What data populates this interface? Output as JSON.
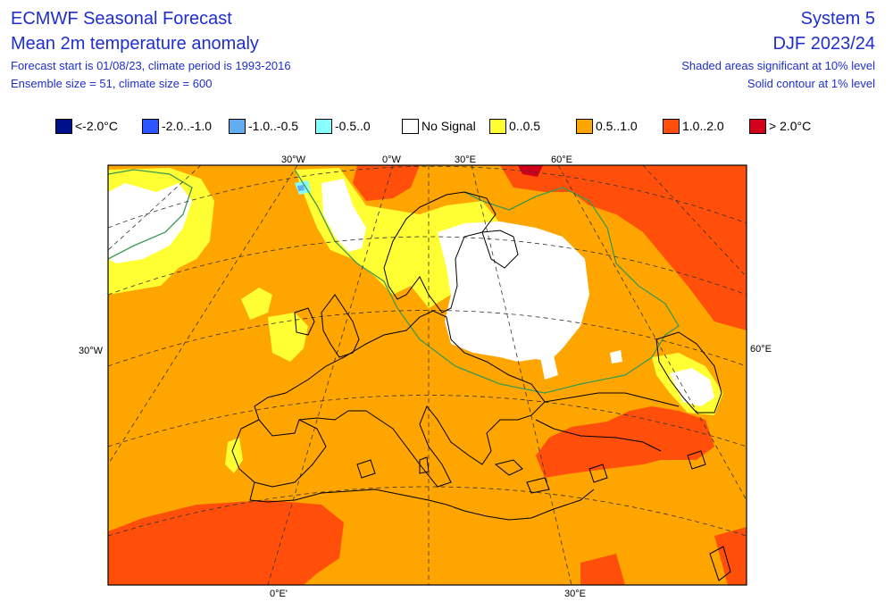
{
  "header": {
    "title_line1": "ECMWF Seasonal Forecast",
    "title_line2": "Mean 2m temperature anomaly",
    "subtitle_line1": "Forecast start is 01/08/23, climate period is 1993-2016",
    "subtitle_line2": "Ensemble size = 51, climate size = 600",
    "system": "System 5",
    "season": "DJF 2023/24",
    "note_line1": "Shaded areas significant at 10% level",
    "note_line2": "Solid contour at 1% level"
  },
  "legend": [
    {
      "label": "<-2.0°C",
      "color": "#000f8c"
    },
    {
      "label": "-2.0..-1.0",
      "color": "#2d55ff"
    },
    {
      "label": "-1.0..-0.5",
      "color": "#60aeef"
    },
    {
      "label": "-0.5..0",
      "color": "#87ffff"
    },
    {
      "label": "No Signal",
      "color": "#ffffff"
    },
    {
      "label": "0..0.5",
      "color": "#ffff33"
    },
    {
      "label": "0.5..1.0",
      "color": "#ffa500"
    },
    {
      "label": "1.0..2.0",
      "color": "#ff4f0a"
    },
    {
      "label": "> 2.0°C",
      "color": "#d3001b"
    }
  ],
  "map": {
    "top_labels": [
      "30°W",
      "0°W",
      "30°E",
      "60°E"
    ],
    "bottom_labels": [
      "0°E'",
      "30°E"
    ],
    "left_label": "30°W",
    "right_label": "60°E"
  }
}
